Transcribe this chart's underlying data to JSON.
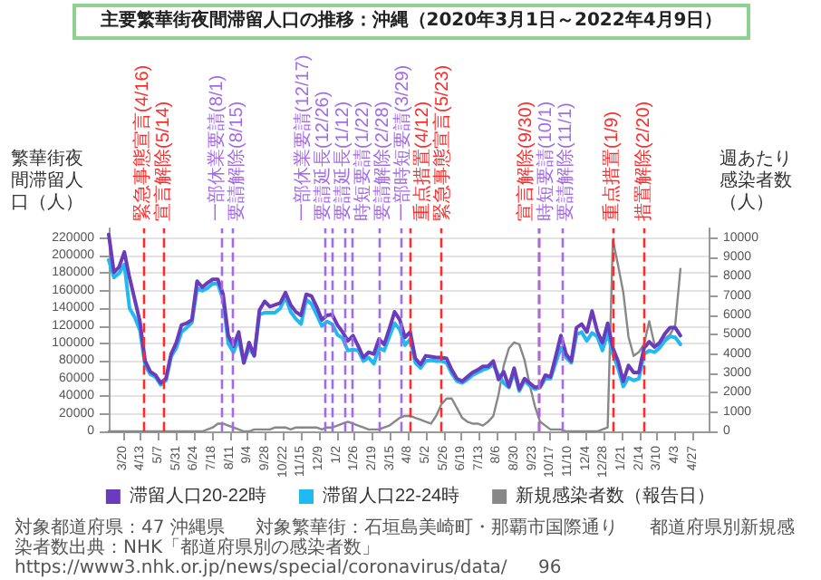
{
  "chart_data": {
    "type": "line",
    "title": "主要繁華街夜間滞留人口の推移：沖縄（2020年3月1日～2022年4月9日）",
    "ylabel": "繁華街夜間滞留人口（人）",
    "y2label": "週あたり感染者数（人）",
    "x": [
      "2020-03-01",
      "2020-03-08",
      "2020-03-15",
      "2020-03-22",
      "2020-03-29",
      "2020-04-05",
      "2020-04-12",
      "2020-04-19",
      "2020-04-26",
      "2020-05-03",
      "2020-05-10",
      "2020-05-17",
      "2020-05-24",
      "2020-05-31",
      "2020-06-07",
      "2020-06-14",
      "2020-06-21",
      "2020-06-28",
      "2020-07-05",
      "2020-07-12",
      "2020-07-19",
      "2020-07-26",
      "2020-08-02",
      "2020-08-09",
      "2020-08-16",
      "2020-08-23",
      "2020-08-30",
      "2020-09-06",
      "2020-09-13",
      "2020-09-20",
      "2020-09-27",
      "2020-10-04",
      "2020-10-11",
      "2020-10-18",
      "2020-10-25",
      "2020-11-01",
      "2020-11-08",
      "2020-11-15",
      "2020-11-22",
      "2020-11-29",
      "2020-12-06",
      "2020-12-13",
      "2020-12-20",
      "2020-12-27",
      "2021-01-03",
      "2021-01-10",
      "2021-01-17",
      "2021-01-24",
      "2021-01-31",
      "2021-02-07",
      "2021-02-14",
      "2021-02-21",
      "2021-02-28",
      "2021-03-07",
      "2021-03-14",
      "2021-03-21",
      "2021-03-28",
      "2021-04-04",
      "2021-04-11",
      "2021-04-18",
      "2021-04-25",
      "2021-05-02",
      "2021-05-09",
      "2021-05-16",
      "2021-05-23",
      "2021-05-30",
      "2021-06-06",
      "2021-06-13",
      "2021-06-20",
      "2021-06-27",
      "2021-07-04",
      "2021-07-11",
      "2021-07-18",
      "2021-07-25",
      "2021-08-01",
      "2021-08-08",
      "2021-08-15",
      "2021-08-22",
      "2021-08-29",
      "2021-09-05",
      "2021-09-12",
      "2021-09-19",
      "2021-09-26",
      "2021-10-03",
      "2021-10-10",
      "2021-10-17",
      "2021-10-24",
      "2021-10-31",
      "2021-11-07",
      "2021-11-14",
      "2021-11-21",
      "2021-11-28",
      "2021-12-05",
      "2021-12-12",
      "2021-12-19",
      "2021-12-26",
      "2022-01-02",
      "2022-01-09",
      "2022-01-16",
      "2022-01-23",
      "2022-01-30",
      "2022-02-06",
      "2022-02-13",
      "2022-02-20",
      "2022-02-27",
      "2022-03-06",
      "2022-03-13",
      "2022-03-20",
      "2022-03-27",
      "2022-04-03",
      "2022-04-10"
    ],
    "series": [
      {
        "name": "滞留人口20-22時",
        "color": "#6a3cbc",
        "values": [
          224000,
          181000,
          187000,
          204000,
          175000,
          150000,
          125000,
          80000,
          68000,
          64000,
          55000,
          60000,
          88000,
          101000,
          121000,
          123000,
          127000,
          171000,
          164000,
          169000,
          173000,
          173000,
          156000,
          109000,
          97000,
          113000,
          78000,
          101000,
          86000,
          138000,
          148000,
          142000,
          144000,
          146000,
          158000,
          144000,
          136000,
          132000,
          156000,
          154000,
          142000,
          127000,
          132000,
          133000,
          121000,
          113000,
          103000,
          109000,
          97000,
          84000,
          90000,
          88000,
          105000,
          99000,
          117000,
          136000,
          127000,
          107000,
          113000,
          83000,
          76000,
          86000,
          85000,
          84000,
          84000,
          83000,
          70000,
          60000,
          57000,
          62000,
          67000,
          70000,
          74000,
          74000,
          80000,
          59000,
          68000,
          51000,
          72000,
          48000,
          60000,
          55000,
          50000,
          51000,
          64000,
          62000,
          85000,
          109000,
          88000,
          80000,
          118000,
          122000,
          113000,
          137000,
          114000,
          101000,
          123000,
          95000,
          80000,
          57000,
          75000,
          67000,
          67000,
          95000,
          102000,
          96000,
          101000,
          111000,
          118000,
          118000,
          109000
        ]
      },
      {
        "name": "滞留人口22-24時",
        "color": "#22b8f0",
        "values": [
          195000,
          175000,
          180000,
          190000,
          140000,
          130000,
          115000,
          75000,
          65000,
          62000,
          53000,
          58000,
          85000,
          95000,
          113000,
          118000,
          124000,
          163000,
          160000,
          163000,
          168000,
          168000,
          150000,
          100000,
          90000,
          105000,
          78000,
          95000,
          86000,
          133000,
          135000,
          135000,
          135000,
          140000,
          153000,
          136000,
          128000,
          122000,
          150000,
          145000,
          133000,
          120000,
          125000,
          122000,
          110000,
          106000,
          92000,
          93000,
          92000,
          80000,
          84000,
          77000,
          95000,
          92000,
          108000,
          123000,
          116000,
          98000,
          105000,
          78000,
          72000,
          80000,
          81000,
          80000,
          80000,
          78000,
          66000,
          57000,
          55000,
          59000,
          64000,
          67000,
          70000,
          72000,
          76000,
          64000,
          55000,
          50000,
          68000,
          46000,
          58000,
          52000,
          48000,
          50000,
          60000,
          60000,
          78000,
          95000,
          84000,
          78000,
          110000,
          113000,
          103000,
          112000,
          108000,
          92000,
          112000,
          88000,
          72000,
          51000,
          61000,
          58000,
          60000,
          88000,
          92000,
          90000,
          95000,
          103000,
          108000,
          107000,
          99000
        ]
      },
      {
        "name": "新規感染者数（報告日）",
        "color": "#888888",
        "axis": "y2",
        "values": [
          0,
          0,
          0,
          0,
          0,
          0,
          0,
          0,
          0,
          0,
          0,
          0,
          0,
          0,
          0,
          0,
          0,
          0,
          0,
          100,
          200,
          400,
          400,
          300,
          200,
          100,
          0,
          0,
          100,
          100,
          100,
          100,
          200,
          200,
          200,
          100,
          200,
          200,
          200,
          200,
          200,
          100,
          200,
          200,
          300,
          400,
          500,
          400,
          300,
          200,
          100,
          100,
          100,
          200,
          300,
          500,
          700,
          800,
          800,
          700,
          600,
          500,
          400,
          800,
          1400,
          1700,
          1700,
          1200,
          700,
          500,
          400,
          400,
          300,
          500,
          800,
          1900,
          3400,
          4300,
          4600,
          4500,
          3700,
          2400,
          1300,
          500,
          300,
          100,
          100,
          100,
          0,
          0,
          0,
          0,
          0,
          0,
          0,
          100,
          200,
          9900,
          8600,
          7200,
          4900,
          3900,
          4100,
          4500,
          5700,
          4500,
          4400,
          4800,
          5000,
          5500,
          8400
        ]
      }
    ],
    "xlim": [
      "2020-03-01",
      "2022-05-18"
    ],
    "xticks": [
      {
        "value": "2020-03-20",
        "label": "3/20"
      },
      {
        "value": "2020-04-13",
        "label": "4/13"
      },
      {
        "value": "2020-05-07",
        "label": "5/7"
      },
      {
        "value": "2020-05-31",
        "label": "5/31"
      },
      {
        "value": "2020-06-24",
        "label": "6/24"
      },
      {
        "value": "2020-07-18",
        "label": "7/18"
      },
      {
        "value": "2020-08-11",
        "label": "8/11"
      },
      {
        "value": "2020-09-04",
        "label": "9/4"
      },
      {
        "value": "2020-09-28",
        "label": "9/28"
      },
      {
        "value": "2020-10-22",
        "label": "10/22"
      },
      {
        "value": "2020-11-15",
        "label": "11/15"
      },
      {
        "value": "2020-12-09",
        "label": "12/9"
      },
      {
        "value": "2021-01-02",
        "label": "1/2"
      },
      {
        "value": "2021-01-26",
        "label": "1/26"
      },
      {
        "value": "2021-02-19",
        "label": "2/19"
      },
      {
        "value": "2021-03-15",
        "label": "3/15"
      },
      {
        "value": "2021-04-08",
        "label": "4/8"
      },
      {
        "value": "2021-05-02",
        "label": "5/2"
      },
      {
        "value": "2021-05-26",
        "label": "5/26"
      },
      {
        "value": "2021-06-19",
        "label": "6/19"
      },
      {
        "value": "2021-07-13",
        "label": "7/13"
      },
      {
        "value": "2021-08-06",
        "label": "8/6"
      },
      {
        "value": "2021-08-30",
        "label": "8/30"
      },
      {
        "value": "2021-09-23",
        "label": "9/23"
      },
      {
        "value": "2021-10-17",
        "label": "10/17"
      },
      {
        "value": "2021-11-10",
        "label": "11/10"
      },
      {
        "value": "2021-12-04",
        "label": "12/4"
      },
      {
        "value": "2021-12-28",
        "label": "12/28"
      },
      {
        "value": "2022-01-21",
        "label": "1/21"
      },
      {
        "value": "2022-02-14",
        "label": "2/14"
      },
      {
        "value": "2022-03-10",
        "label": "3/10"
      },
      {
        "value": "2022-04-03",
        "label": "4/3"
      },
      {
        "value": "2022-04-27",
        "label": "4/27"
      }
    ],
    "ylim": [
      0,
      231000
    ],
    "yticks": [
      0,
      20000,
      40000,
      60000,
      80000,
      100000,
      120000,
      140000,
      160000,
      180000,
      200000,
      220000
    ],
    "y2lim": [
      0,
      10500
    ],
    "y2ticks": [
      0,
      1000,
      2000,
      3000,
      4000,
      5000,
      6000,
      7000,
      8000,
      9000,
      10000
    ],
    "ref_lines": [
      {
        "axis": "x",
        "value": "2020-04-16",
        "label": "緊急事態宣言(4/16)",
        "color": "#ff2a2a",
        "line_style": "dashed"
      },
      {
        "axis": "x",
        "value": "2020-05-14",
        "label": "宣言解除(5/14)",
        "color": "#ff2a2a",
        "line_style": "dashed"
      },
      {
        "axis": "x",
        "value": "2020-08-01",
        "label": "一部休業要請(8/1)",
        "color": "#a36be6",
        "line_style": "dashed"
      },
      {
        "axis": "x",
        "value": "2020-08-15",
        "label": "要請解除(8/15)",
        "color": "#a36be6",
        "line_style": "dashed"
      },
      {
        "axis": "x",
        "value": "2020-12-17",
        "label": "一部休業要請(12/17)",
        "color": "#a36be6",
        "line_style": "dashed"
      },
      {
        "axis": "x",
        "value": "2020-12-26",
        "label": "要請延長(12/26)",
        "color": "#a36be6",
        "line_style": "dashed"
      },
      {
        "axis": "x",
        "value": "2021-01-12",
        "label": "要請延長(1/12)",
        "color": "#a36be6",
        "line_style": "dashed"
      },
      {
        "axis": "x",
        "value": "2021-01-22",
        "label": "時短要請(1/22)",
        "color": "#a36be6",
        "line_style": "dashed"
      },
      {
        "axis": "x",
        "value": "2021-02-28",
        "label": "要請解除(2/28)",
        "color": "#a36be6",
        "line_style": "dashed"
      },
      {
        "axis": "x",
        "value": "2021-03-29",
        "label": "一部時短要請(3/29)",
        "color": "#a36be6",
        "line_style": "dashed"
      },
      {
        "axis": "x",
        "value": "2021-04-12",
        "label": "重点措置(4/12)",
        "color": "#ff2a2a",
        "line_style": "dashed"
      },
      {
        "axis": "x",
        "value": "2021-05-23",
        "label": "緊急事態宣言(5/23)",
        "color": "#ff2a2a",
        "line_style": "dashed"
      },
      {
        "axis": "x",
        "value": "2021-09-30",
        "label": "宣言解除(9/30)",
        "color": "#ff2a2a",
        "line_style": "dashed"
      },
      {
        "axis": "x",
        "value": "2021-10-01",
        "label": "時短要請(10/1)",
        "color": "#a36be6",
        "line_style": "dashed"
      },
      {
        "axis": "x",
        "value": "2021-11-01",
        "label": "要請解除(11/1)",
        "color": "#a36be6",
        "line_style": "dashed"
      },
      {
        "axis": "x",
        "value": "2022-01-09",
        "label": "重点措置(1/9)",
        "color": "#ff2a2a",
        "line_style": "dashed"
      },
      {
        "axis": "x",
        "value": "2022-02-20",
        "label": "措置解除(2/20)",
        "color": "#ff2a2a",
        "line_style": "dashed"
      }
    ],
    "annotations": [
      "対象都道府県：47 沖縄県",
      "対象繁華街：石垣島美崎町・那覇市国際通り",
      "都道府県別新規感染者数出典：NHK「都道府県別の感染者数」https://www3.nhk.or.jp/news/special/coronavirus/data/",
      "96"
    ],
    "grid": "y",
    "legend": "bottom",
    "marker": "none"
  }
}
